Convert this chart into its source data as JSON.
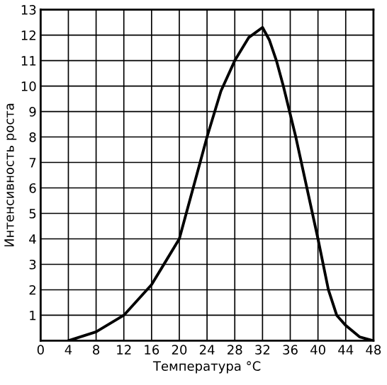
{
  "chart_data": {
    "type": "line",
    "xlabel": "Температура °С",
    "ylabel": "Интенсивность роста",
    "x": [
      4,
      8,
      12,
      16,
      18,
      20,
      22,
      24,
      26,
      28,
      30,
      32,
      33,
      34,
      35,
      36.8,
      38.4,
      40,
      41.5,
      42.7,
      44,
      46,
      48
    ],
    "series": [
      {
        "color": "#000000",
        "values": [
          0,
          0.35,
          1,
          2.2,
          3.1,
          4,
          6,
          8,
          9.8,
          11,
          11.9,
          12.3,
          11.8,
          11,
          10,
          8,
          6,
          4,
          2,
          1,
          0.6,
          0.15,
          0
        ]
      }
    ],
    "xlim": [
      0,
      48
    ],
    "ylim": [
      0,
      13
    ],
    "xticks": [
      0,
      4,
      8,
      12,
      16,
      20,
      24,
      28,
      32,
      36,
      40,
      44,
      48
    ],
    "yticks": [
      1,
      2,
      3,
      4,
      5,
      6,
      7,
      8,
      9,
      10,
      11,
      12,
      13
    ],
    "grid": true,
    "marker": "none",
    "line_style": "solid"
  }
}
